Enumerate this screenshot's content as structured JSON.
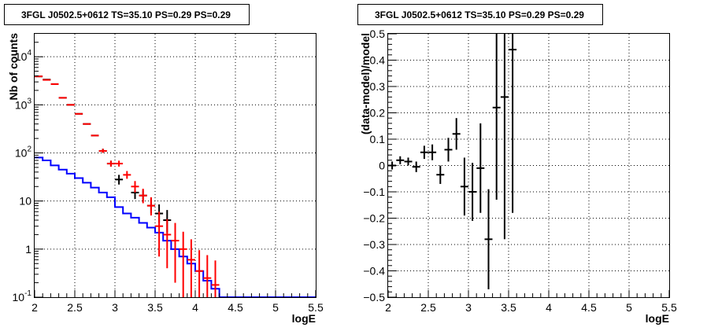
{
  "chart_data": [
    {
      "type": "histogram",
      "title": "3FGL J0502.5+0612 TS=35.10 PS=0.29 PS=0.29",
      "xlabel": "logE",
      "ylabel": "Nb of counts",
      "xlim": [
        2,
        5.5
      ],
      "ylim": [
        0.1,
        30000
      ],
      "yscale": "log",
      "grid": true,
      "x_ticks": [
        "2",
        "2.5",
        "3",
        "3.5",
        "4",
        "4.5",
        "5",
        "5.5"
      ],
      "y_ticks": [
        {
          "value": 0.1,
          "label": "10",
          "exp": "-1"
        },
        {
          "value": 1,
          "label": "1",
          "exp": ""
        },
        {
          "value": 10,
          "label": "10",
          "exp": ""
        },
        {
          "value": 100,
          "label": "10",
          "exp": "2"
        },
        {
          "value": 1000,
          "label": "10",
          "exp": "3"
        },
        {
          "value": 10000,
          "label": "10",
          "exp": "4"
        }
      ],
      "series": [
        {
          "kind": "step",
          "color": "#0000ff",
          "bin_edges": [
            2.0,
            2.1,
            2.2,
            2.3,
            2.4,
            2.5,
            2.6,
            2.7,
            2.8,
            2.9,
            3.0,
            3.1,
            3.2,
            3.3,
            3.4,
            3.5,
            3.6,
            3.7,
            3.8,
            3.9,
            4.0,
            4.1,
            4.2,
            4.3,
            5.5
          ],
          "values": [
            80,
            70,
            55,
            45,
            37,
            30,
            24,
            19,
            15,
            12,
            7.5,
            5.5,
            4.5,
            3.5,
            2.8,
            2.2,
            1.5,
            1.0,
            0.7,
            0.5,
            0.35,
            0.22,
            0.15,
            0.1
          ]
        },
        {
          "kind": "points",
          "color": "#000000",
          "x": [
            2.05,
            2.15,
            2.25,
            2.35,
            2.45,
            2.55,
            2.65,
            2.75,
            2.85,
            2.95,
            3.05,
            3.25,
            3.35,
            3.45,
            3.55,
            3.65
          ],
          "y": [
            3900,
            3350,
            2700,
            1400,
            1000,
            650,
            400,
            230,
            110,
            60,
            28,
            15,
            13,
            8,
            5.5,
            4
          ],
          "err_low": [
            0,
            0,
            0,
            0,
            0,
            0,
            0,
            0,
            10,
            8,
            6,
            4,
            3,
            2.5,
            2,
            1.8
          ],
          "err_high": [
            0,
            0,
            0,
            0,
            0,
            0,
            0,
            0,
            12,
            9,
            7,
            5,
            4,
            3.5,
            3,
            2.5
          ]
        },
        {
          "kind": "points",
          "color": "#ff0000",
          "x": [
            2.05,
            2.15,
            2.25,
            2.35,
            2.45,
            2.55,
            2.65,
            2.75,
            2.85,
            2.95,
            3.05,
            3.15,
            3.25,
            3.35,
            3.45,
            3.55,
            3.65,
            3.75,
            3.85,
            3.95,
            4.05,
            4.15,
            4.25
          ],
          "y": [
            3900,
            3300,
            2700,
            1400,
            1000,
            650,
            400,
            230,
            110,
            60,
            60,
            35,
            20,
            13,
            8,
            3,
            2,
            1.5,
            1,
            0.6,
            0.35,
            0.25,
            0.18
          ],
          "err_low": [
            0,
            0,
            0,
            0,
            0,
            0,
            0,
            0,
            10,
            8,
            8,
            6,
            5,
            4,
            3,
            2.3,
            1.6,
            1.3,
            0.92,
            0.55,
            0.3,
            0.22,
            0.15
          ],
          "err_high": [
            0,
            0,
            0,
            0,
            0,
            0,
            0,
            0,
            12,
            9,
            9,
            7,
            6,
            5,
            4,
            3,
            2.2,
            2,
            1.3,
            1,
            0.6,
            0.5,
            0.4
          ]
        }
      ]
    },
    {
      "type": "scatter",
      "title": "3FGL J0502.5+0612 TS=35.10 PS=0.29 PS=0.29",
      "xlabel": "logE",
      "ylabel": "(data-model)/model",
      "xlim": [
        2,
        5.5
      ],
      "ylim": [
        -0.5,
        0.5
      ],
      "grid": true,
      "x_ticks": [
        "2",
        "2.5",
        "3",
        "3.5",
        "4",
        "4.5",
        "5",
        "5.5"
      ],
      "y_ticks": [
        "-0.5",
        "-0.4",
        "-0.3",
        "-0.2",
        "-0.1",
        "0",
        "0.1",
        "0.2",
        "0.3",
        "0.4",
        "0.5"
      ],
      "series": [
        {
          "color": "#000000",
          "x": [
            2.05,
            2.15,
            2.25,
            2.35,
            2.45,
            2.55,
            2.65,
            2.75,
            2.85,
            2.95,
            3.05,
            3.15,
            3.25,
            3.35,
            3.45,
            3.55
          ],
          "y": [
            0.0,
            0.02,
            0.015,
            -0.005,
            0.05,
            0.05,
            -0.035,
            0.06,
            0.12,
            -0.08,
            -0.1,
            -0.01,
            -0.28,
            0.22,
            0.26,
            0.44
          ],
          "err_low": [
            0.015,
            0.015,
            0.015,
            0.02,
            0.025,
            0.03,
            0.035,
            0.045,
            0.06,
            0.11,
            0.11,
            0.17,
            0.19,
            0.35,
            0.54,
            0.62
          ],
          "err_high": [
            0.015,
            0.015,
            0.015,
            0.02,
            0.025,
            0.03,
            0.035,
            0.045,
            0.06,
            0.11,
            0.11,
            0.17,
            0.19,
            0.35,
            0.54,
            0.62
          ]
        }
      ]
    }
  ]
}
